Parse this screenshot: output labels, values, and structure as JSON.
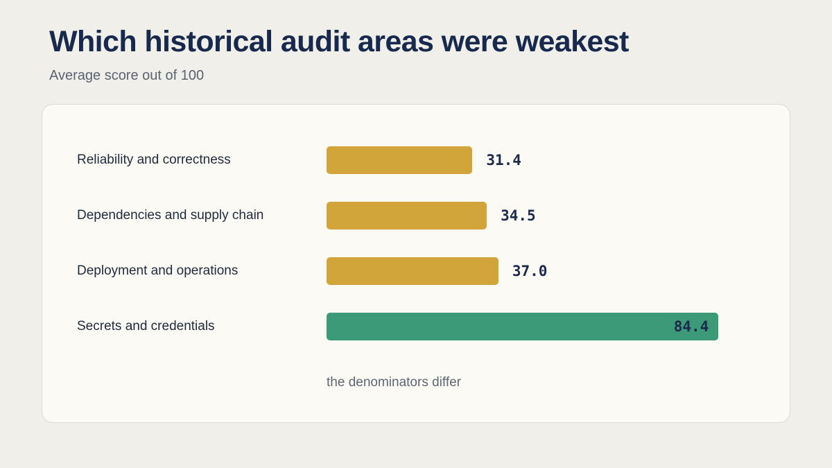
{
  "title": "Which historical audit areas were weakest",
  "subtitle": "Average score out of 100",
  "note": "the denominators differ",
  "colors": {
    "background": "#f0efea",
    "card": "#fbfaf4",
    "bar_default": "#d2a53a",
    "bar_highlight": "#3d9a78",
    "text": "#1b2a4a"
  },
  "chart_data": {
    "type": "bar",
    "orientation": "horizontal",
    "title": "Which historical audit areas were weakest",
    "subtitle": "Average score out of 100",
    "categories": [
      "Reliability and correctness",
      "Dependencies and supply chain",
      "Deployment and operations",
      "Secrets and credentials"
    ],
    "values": [
      31.4,
      34.5,
      37.0,
      84.4
    ],
    "value_labels": [
      "31.4",
      "34.5",
      "37.0",
      "84.4"
    ],
    "highlight": [
      false,
      false,
      false,
      true
    ],
    "xlim": [
      0,
      106
    ],
    "grid": false,
    "annotations": [
      "the denominators differ"
    ]
  }
}
